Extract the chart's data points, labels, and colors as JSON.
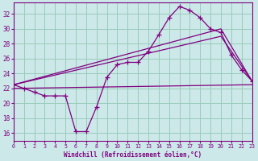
{
  "xlabel": "Windchill (Refroidissement éolien,°C)",
  "background_color": "#cce8e8",
  "grid_color": "#99ccbb",
  "line_color": "#800080",
  "x_ticks": [
    0,
    1,
    2,
    3,
    4,
    5,
    6,
    7,
    8,
    9,
    10,
    11,
    12,
    13,
    14,
    15,
    16,
    17,
    18,
    19,
    20,
    21,
    22,
    23
  ],
  "y_ticks": [
    16,
    18,
    20,
    22,
    24,
    26,
    28,
    30,
    32
  ],
  "xlim": [
    0,
    23
  ],
  "ylim": [
    15.0,
    33.5
  ],
  "series1_x": [
    0,
    1,
    2,
    3,
    4,
    5,
    6,
    7,
    8,
    9,
    10,
    11,
    12,
    13,
    14,
    15,
    16,
    17,
    18,
    19,
    20,
    21,
    22,
    23
  ],
  "series1_y": [
    22.5,
    22.0,
    21.5,
    21.0,
    21.0,
    21.0,
    16.2,
    16.2,
    19.5,
    23.5,
    25.2,
    25.5,
    25.5,
    27.0,
    29.2,
    31.5,
    33.0,
    32.5,
    31.5,
    30.0,
    29.5,
    26.5,
    24.5,
    23.0
  ],
  "series2_x": [
    0,
    23
  ],
  "series2_y": [
    22.0,
    22.5
  ],
  "series3_x": [
    0,
    20,
    23
  ],
  "series3_y": [
    22.5,
    30.0,
    23.0
  ],
  "series4_x": [
    0,
    20,
    23
  ],
  "series4_y": [
    22.5,
    29.0,
    23.0
  ]
}
